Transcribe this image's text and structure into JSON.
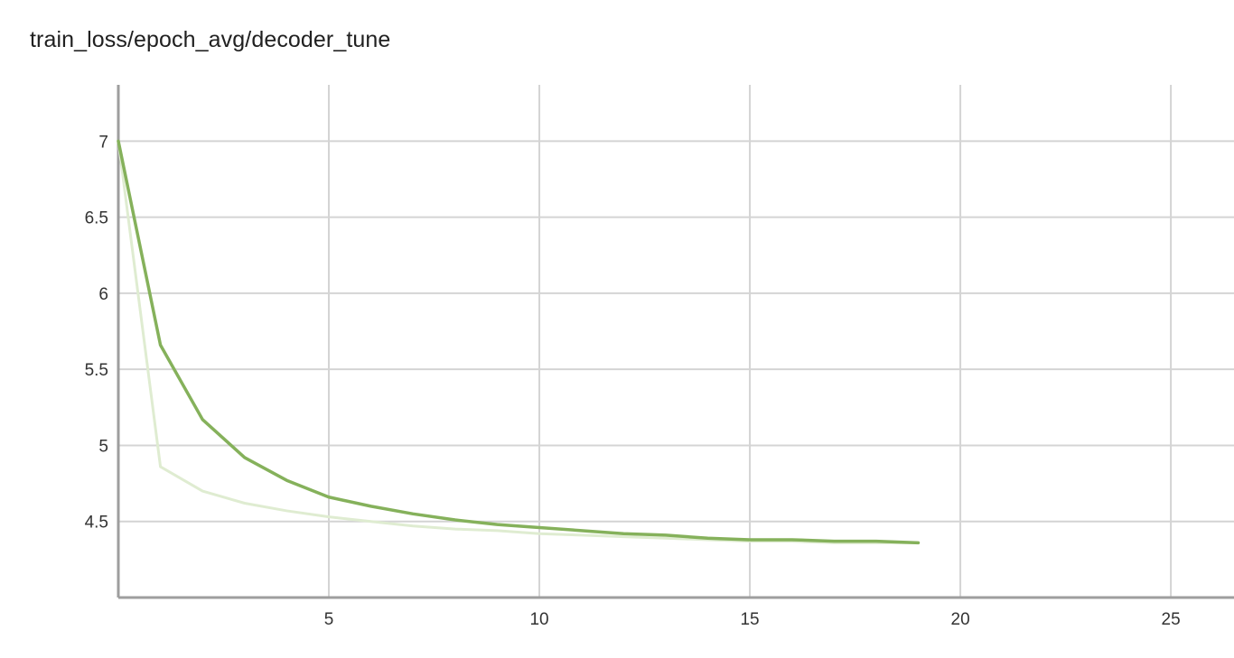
{
  "chart_data": {
    "type": "line",
    "title": "train_loss/epoch_avg/decoder_tune",
    "xlabel": "",
    "ylabel": "",
    "xlim": [
      0,
      26.5
    ],
    "ylim": [
      4.0,
      7.37
    ],
    "xticks": [
      5,
      10,
      15,
      20,
      25
    ],
    "xtick_labels": [
      "5",
      "10",
      "15",
      "20",
      "25"
    ],
    "yticks": [
      4.5,
      5,
      5.5,
      6,
      6.5,
      7
    ],
    "ytick_labels": [
      "4.5",
      "5",
      "5.5",
      "6",
      "6.5",
      "7"
    ],
    "grid": true,
    "legend": "none",
    "series": [
      {
        "role": "raw",
        "color": "#dfecd1",
        "x": [
          0,
          1,
          2,
          3,
          4,
          5,
          6,
          7,
          8,
          9,
          10,
          11,
          12,
          13,
          14,
          15,
          16,
          17,
          18,
          19
        ],
        "y": [
          7.0,
          4.86,
          4.7,
          4.62,
          4.57,
          4.53,
          4.5,
          4.47,
          4.45,
          4.44,
          4.42,
          4.41,
          4.4,
          4.39,
          4.38,
          4.37,
          4.37,
          4.36,
          4.36,
          4.36
        ]
      },
      {
        "role": "smoothed",
        "color": "#85b15b",
        "x": [
          0,
          1,
          2,
          3,
          4,
          5,
          6,
          7,
          8,
          9,
          10,
          11,
          12,
          13,
          14,
          15,
          16,
          17,
          18,
          19
        ],
        "y": [
          7.0,
          5.66,
          5.17,
          4.92,
          4.77,
          4.66,
          4.6,
          4.55,
          4.51,
          4.48,
          4.46,
          4.44,
          4.42,
          4.41,
          4.39,
          4.38,
          4.38,
          4.37,
          4.37,
          4.36
        ]
      }
    ]
  }
}
